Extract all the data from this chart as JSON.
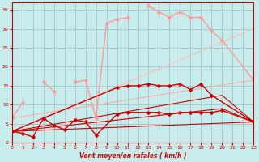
{
  "background_color": "#c8ecec",
  "grid_color": "#9ebebe",
  "xlabel": "Vent moyen/en rafales ( km/h )",
  "xlabel_color": "#cc0000",
  "tick_color": "#cc0000",
  "xlim": [
    0,
    23
  ],
  "ylim": [
    0,
    37
  ],
  "yticks": [
    0,
    5,
    10,
    15,
    20,
    25,
    30,
    35
  ],
  "xticks": [
    0,
    1,
    2,
    3,
    4,
    5,
    6,
    7,
    8,
    9,
    10,
    11,
    12,
    13,
    14,
    15,
    16,
    17,
    18,
    19,
    20,
    21,
    22,
    23
  ],
  "series": [
    {
      "x": [
        0,
        1,
        2,
        3,
        4,
        5,
        6,
        7,
        8,
        9,
        10,
        11,
        12,
        13,
        14,
        15,
        16,
        17,
        18,
        19,
        20,
        23
      ],
      "y": [
        6.5,
        10.5,
        null,
        16.0,
        13.5,
        null,
        16.0,
        16.5,
        6.5,
        31.5,
        32.5,
        33.0,
        null,
        36.0,
        34.5,
        33.0,
        34.5,
        33.0,
        33.0,
        29.5,
        27.0,
        16.5
      ],
      "color": "#ff9999",
      "linewidth": 1.0,
      "marker": "D",
      "markersize": 2.5
    },
    {
      "x": [
        0,
        23
      ],
      "y": [
        6.5,
        16.5
      ],
      "color": "#ffaaaa",
      "linewidth": 0.8,
      "marker": null,
      "markersize": 0
    },
    {
      "x": [
        0,
        23
      ],
      "y": [
        3.0,
        30.0
      ],
      "color": "#ffbbbb",
      "linewidth": 0.8,
      "marker": null,
      "markersize": 0
    },
    {
      "x": [
        0,
        3,
        10,
        11,
        12,
        13,
        14,
        15,
        16,
        17,
        18,
        19,
        23
      ],
      "y": [
        3.0,
        6.5,
        14.5,
        15.0,
        15.0,
        15.5,
        15.0,
        15.0,
        15.5,
        14.0,
        15.5,
        12.5,
        5.5
      ],
      "color": "#cc0000",
      "linewidth": 1.0,
      "marker": "D",
      "markersize": 2.5
    },
    {
      "x": [
        0,
        1,
        2,
        3,
        4,
        5,
        6,
        7,
        8,
        10,
        11,
        13,
        14,
        15,
        16,
        17,
        18,
        19,
        20,
        23
      ],
      "y": [
        3.0,
        2.5,
        1.5,
        6.5,
        4.5,
        3.5,
        6.0,
        5.5,
        2.0,
        7.5,
        8.0,
        8.0,
        8.0,
        7.5,
        8.0,
        8.0,
        8.0,
        8.0,
        8.5,
        5.5
      ],
      "color": "#cc0000",
      "linewidth": 1.0,
      "marker": "D",
      "markersize": 2.5
    },
    {
      "x": [
        0,
        20,
        23
      ],
      "y": [
        3.0,
        9.0,
        5.5
      ],
      "color": "#cc0000",
      "linewidth": 0.8,
      "marker": null,
      "markersize": 0
    },
    {
      "x": [
        0,
        23
      ],
      "y": [
        3.0,
        5.5
      ],
      "color": "#cc0000",
      "linewidth": 0.8,
      "marker": null,
      "markersize": 0
    },
    {
      "x": [
        0,
        20,
        23
      ],
      "y": [
        3.0,
        12.5,
        5.5
      ],
      "color": "#cc0000",
      "linewidth": 0.8,
      "marker": null,
      "markersize": 0
    }
  ]
}
